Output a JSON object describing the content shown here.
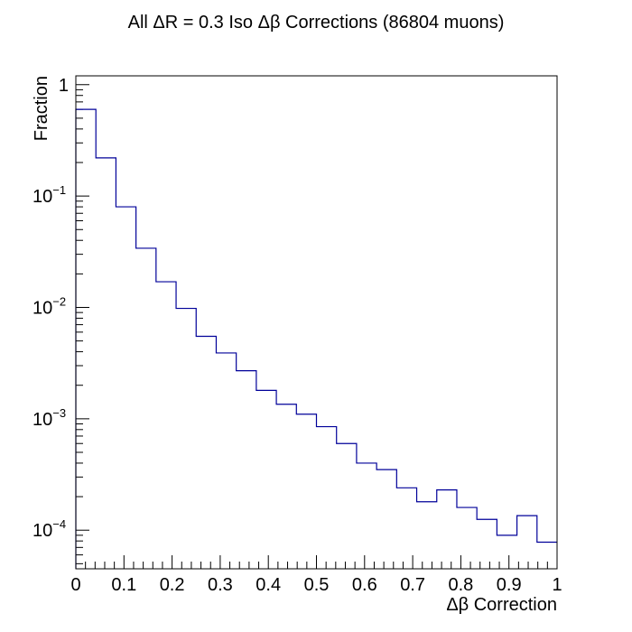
{
  "chart_data": {
    "type": "line",
    "style": "step-histogram",
    "title": "All ΔR = 0.3 Iso Δβ Corrections (86804 muons)",
    "xlabel": "Δβ Correction",
    "ylabel": "Fraction",
    "xlim": [
      0,
      1
    ],
    "ylim": [
      4.5e-05,
      1.2
    ],
    "yscale": "log",
    "grid": false,
    "line_color": "#000099",
    "bin_edges": [
      0.0,
      0.04167,
      0.08333,
      0.125,
      0.16667,
      0.20833,
      0.25,
      0.29167,
      0.33333,
      0.375,
      0.41667,
      0.45833,
      0.5,
      0.54167,
      0.58333,
      0.625,
      0.66667,
      0.70833,
      0.75,
      0.79167,
      0.83333,
      0.875,
      0.91667,
      0.95833,
      1.0
    ],
    "values": [
      0.6,
      0.22,
      0.08,
      0.034,
      0.017,
      0.0098,
      0.0055,
      0.0039,
      0.0027,
      0.0018,
      0.00135,
      0.0011,
      0.00085,
      0.0006,
      0.0004,
      0.00035,
      0.00024,
      0.00018,
      0.00023,
      0.00016,
      0.000125,
      9e-05,
      0.000135,
      7.8e-05
    ],
    "x_ticks": [
      "0",
      "0.1",
      "0.2",
      "0.3",
      "0.4",
      "0.5",
      "0.6",
      "0.7",
      "0.8",
      "0.9",
      "1"
    ],
    "y_ticks": [
      {
        "value": 1,
        "base": "1",
        "exp": ""
      },
      {
        "value": 0.1,
        "base": "10",
        "exp": "−1"
      },
      {
        "value": 0.01,
        "base": "10",
        "exp": "−2"
      },
      {
        "value": 0.001,
        "base": "10",
        "exp": "−3"
      },
      {
        "value": 0.0001,
        "base": "10",
        "exp": "−4"
      }
    ]
  }
}
